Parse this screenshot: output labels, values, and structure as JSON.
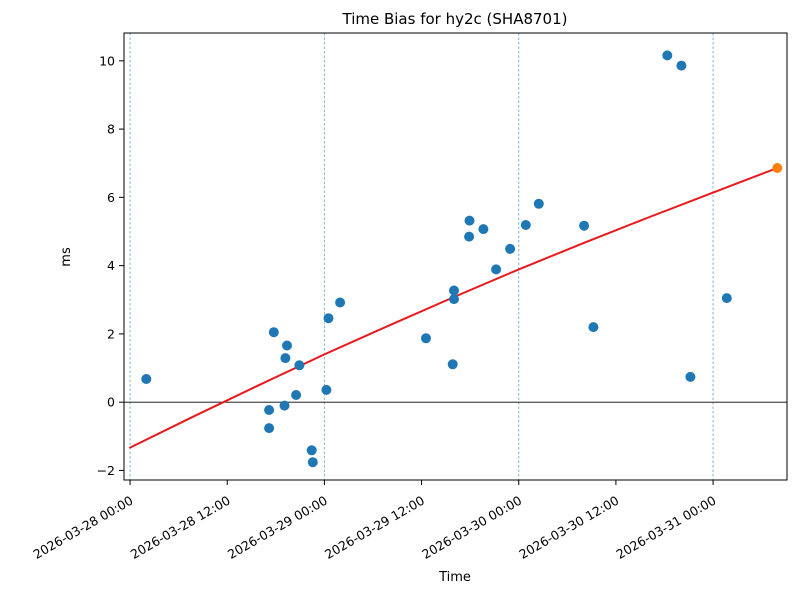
{
  "chart_data": {
    "type": "scatter",
    "title": "Time Bias for hy2c (SHA8701)",
    "xlabel": "Time",
    "ylabel": "ms",
    "x_base_time": "2026-03-28 00:00",
    "xlim_hours_from_base": [
      -0.75,
      81.13
    ],
    "ylim": [
      -2.28,
      10.815
    ],
    "grid": "vertical dashed gridlines at day boundaries only",
    "legend_position": "none",
    "x_ticks": [
      {
        "time": "2026-03-28 00:00",
        "label": "2026-03-28 00:00"
      },
      {
        "time": "2026-03-28 12:00",
        "label": "2026-03-28 12:00"
      },
      {
        "time": "2026-03-29 00:00",
        "label": "2026-03-29 00:00"
      },
      {
        "time": "2026-03-29 12:00",
        "label": "2026-03-29 12:00"
      },
      {
        "time": "2026-03-30 00:00",
        "label": "2026-03-30 00:00"
      },
      {
        "time": "2026-03-30 12:00",
        "label": "2026-03-30 12:00"
      },
      {
        "time": "2026-03-31 00:00",
        "label": "2026-03-31 00:00"
      }
    ],
    "y_ticks": [
      -2,
      0,
      2,
      4,
      6,
      8,
      10
    ],
    "day_gridlines": [
      "2026-03-28 00:00",
      "2026-03-29 00:00",
      "2026-03-30 00:00",
      "2026-03-31 00:00"
    ],
    "zero_line_y": 0,
    "colors": {
      "observation": "#1f77b4",
      "prediction": "#ff7f0e",
      "fit_line": "#e8191c",
      "gridline": "#1f77b4",
      "zero_line": "#000000",
      "spine": "#000000"
    },
    "series": [
      {
        "name": "observations",
        "type": "scatter",
        "color_key": "observation",
        "points": [
          {
            "time": "2026-03-28 02:00",
            "ms": 0.68
          },
          {
            "time": "2026-03-28 17:10",
            "ms": -0.23
          },
          {
            "time": "2026-03-28 17:10",
            "ms": -0.76
          },
          {
            "time": "2026-03-28 17:45",
            "ms": 2.05
          },
          {
            "time": "2026-03-28 19:04",
            "ms": -0.1
          },
          {
            "time": "2026-03-28 19:11",
            "ms": 1.29
          },
          {
            "time": "2026-03-28 19:23",
            "ms": 1.66
          },
          {
            "time": "2026-03-28 20:30",
            "ms": 0.21
          },
          {
            "time": "2026-03-28 20:55",
            "ms": 1.08
          },
          {
            "time": "2026-03-28 22:26",
            "ms": -1.41
          },
          {
            "time": "2026-03-28 22:34",
            "ms": -1.76
          },
          {
            "time": "2026-03-29 00:15",
            "ms": 0.36
          },
          {
            "time": "2026-03-29 00:30",
            "ms": 2.46
          },
          {
            "time": "2026-03-29 01:56",
            "ms": 2.92
          },
          {
            "time": "2026-03-29 12:33",
            "ms": 1.87
          },
          {
            "time": "2026-03-29 15:51",
            "ms": 1.11
          },
          {
            "time": "2026-03-29 16:00",
            "ms": 3.27
          },
          {
            "time": "2026-03-29 16:00",
            "ms": 3.02
          },
          {
            "time": "2026-03-29 17:52",
            "ms": 4.85
          },
          {
            "time": "2026-03-29 17:55",
            "ms": 5.32
          },
          {
            "time": "2026-03-29 19:38",
            "ms": 5.07
          },
          {
            "time": "2026-03-29 21:12",
            "ms": 3.89
          },
          {
            "time": "2026-03-29 22:56",
            "ms": 4.49
          },
          {
            "time": "2026-03-30 00:52",
            "ms": 5.19
          },
          {
            "time": "2026-03-30 02:29",
            "ms": 5.81
          },
          {
            "time": "2026-03-30 08:04",
            "ms": 5.17
          },
          {
            "time": "2026-03-30 09:13",
            "ms": 2.2
          },
          {
            "time": "2026-03-30 18:21",
            "ms": 10.16
          },
          {
            "time": "2026-03-30 20:05",
            "ms": 9.86
          },
          {
            "time": "2026-03-30 21:12",
            "ms": 0.74
          },
          {
            "time": "2026-03-31 01:42",
            "ms": 3.05
          }
        ]
      },
      {
        "name": "prediction",
        "type": "scatter",
        "color_key": "prediction",
        "points": [
          {
            "time": "2026-03-31 07:56",
            "ms": 6.86
          }
        ]
      },
      {
        "name": "fit",
        "type": "line",
        "color_key": "fit_line",
        "points": [
          {
            "time": "2026-03-28 00:00",
            "ms": -1.33
          },
          {
            "time": "2026-03-28 08:00",
            "ms": -0.4
          },
          {
            "time": "2026-03-28 16:00",
            "ms": 0.51
          },
          {
            "time": "2026-03-29 00:00",
            "ms": 1.4
          },
          {
            "time": "2026-03-29 08:00",
            "ms": 2.25
          },
          {
            "time": "2026-03-29 16:00",
            "ms": 3.08
          },
          {
            "time": "2026-03-30 00:00",
            "ms": 3.89
          },
          {
            "time": "2026-03-30 08:00",
            "ms": 4.66
          },
          {
            "time": "2026-03-30 16:00",
            "ms": 5.41
          },
          {
            "time": "2026-03-31 00:00",
            "ms": 6.14
          },
          {
            "time": "2026-03-31 07:56",
            "ms": 6.86
          }
        ]
      }
    ]
  }
}
